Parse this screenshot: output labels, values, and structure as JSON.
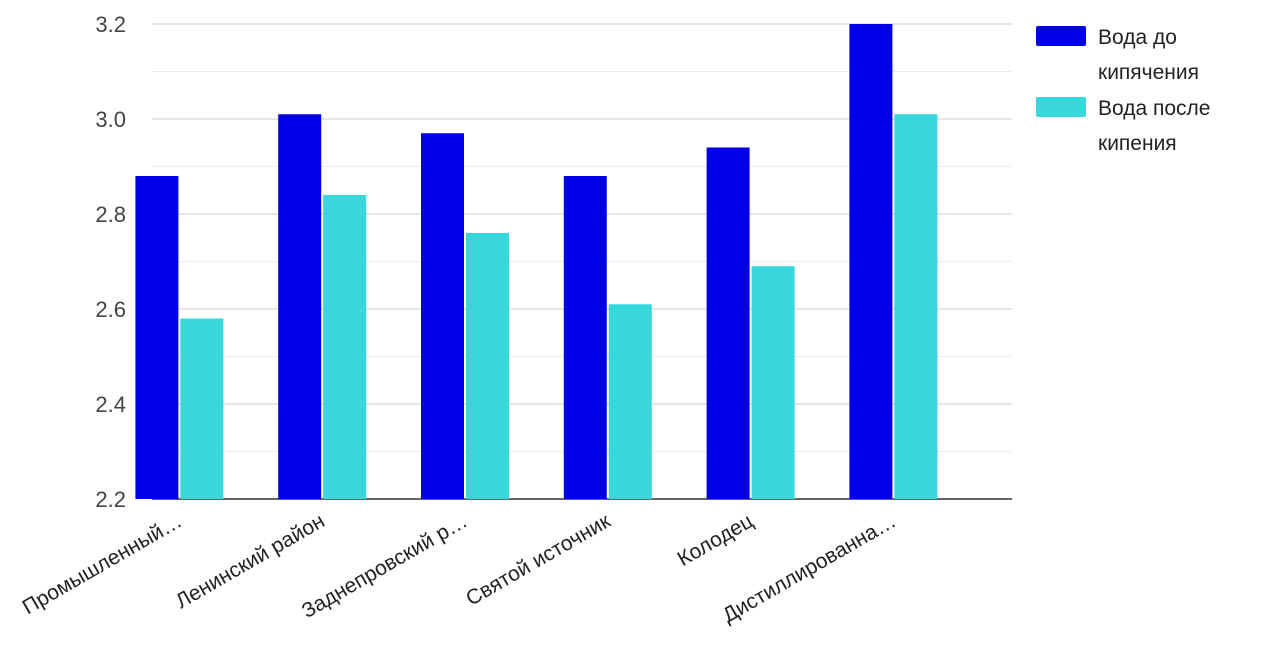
{
  "chart_data": {
    "type": "bar",
    "categories": [
      "Промышленный…",
      "Ленинский район",
      "Заднепровский р…",
      "Святой источник",
      "Колодец",
      "Дистиллированна…"
    ],
    "series": [
      {
        "name": "Вода до кипячения",
        "color": "#0000e6",
        "values": [
          2.88,
          3.01,
          2.97,
          2.88,
          2.94,
          3.2
        ]
      },
      {
        "name": "Вода после кипения",
        "color": "#38d7dc",
        "values": [
          2.58,
          2.84,
          2.76,
          2.61,
          2.69,
          3.01
        ]
      }
    ],
    "yticks": [
      "2.2",
      "2.4",
      "2.6",
      "2.8",
      "3.0",
      "3.2"
    ],
    "ylim": [
      2.2,
      3.2
    ],
    "grid": true,
    "legend_position": "top-right",
    "legend_lines": [
      [
        "Вода до",
        "кипячения"
      ],
      [
        "Вода после",
        "кипения"
      ]
    ]
  }
}
